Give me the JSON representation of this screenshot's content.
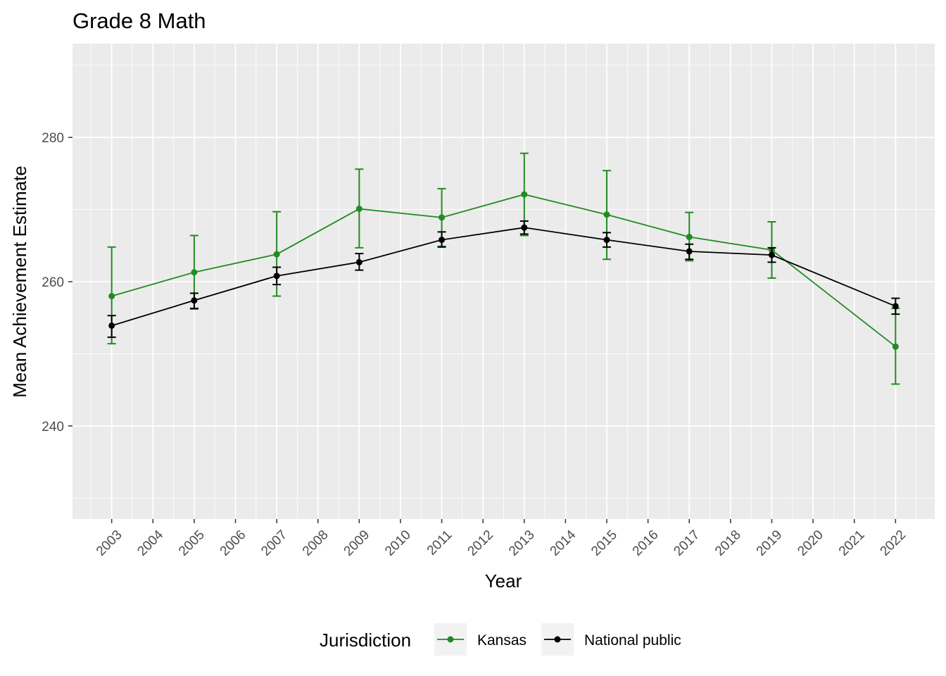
{
  "chart_data": {
    "type": "line",
    "title": "Grade 8 Math",
    "xlabel": "Year",
    "ylabel": "Mean Achievement Estimate",
    "xlim": [
      2002.05,
      2022.95
    ],
    "ylim": [
      227.1,
      293.0
    ],
    "x_ticks": [
      2003,
      2004,
      2005,
      2006,
      2007,
      2008,
      2009,
      2010,
      2011,
      2012,
      2013,
      2014,
      2015,
      2016,
      2017,
      2018,
      2019,
      2020,
      2021,
      2022
    ],
    "y_ticks": [
      240,
      260,
      280
    ],
    "grid": true,
    "legend": {
      "title": "Jurisdiction",
      "position": "bottom"
    },
    "series": [
      {
        "name": "Kansas",
        "color": "#228B22",
        "x": [
          2003,
          2005,
          2007,
          2009,
          2011,
          2013,
          2015,
          2017,
          2019,
          2022
        ],
        "y": [
          258.0,
          261.3,
          263.8,
          270.1,
          268.9,
          272.1,
          269.3,
          266.2,
          264.4,
          251.0
        ],
        "ymin": [
          251.4,
          256.2,
          258.0,
          264.7,
          264.9,
          266.4,
          263.1,
          262.9,
          260.5,
          245.8
        ],
        "ymax": [
          264.8,
          266.4,
          269.7,
          275.6,
          272.9,
          277.8,
          275.4,
          269.6,
          268.3,
          256.3
        ]
      },
      {
        "name": "National public",
        "color": "#000000",
        "x": [
          2003,
          2005,
          2007,
          2009,
          2011,
          2013,
          2015,
          2017,
          2019,
          2022
        ],
        "y": [
          253.9,
          257.4,
          260.8,
          262.7,
          265.8,
          267.5,
          265.8,
          264.2,
          263.7,
          256.6
        ],
        "ymin": [
          252.3,
          256.3,
          259.6,
          261.6,
          264.8,
          266.6,
          264.8,
          263.1,
          262.7,
          255.5
        ],
        "ymax": [
          255.3,
          258.4,
          262.0,
          263.9,
          266.9,
          268.4,
          266.8,
          265.2,
          264.7,
          257.7
        ]
      }
    ]
  }
}
